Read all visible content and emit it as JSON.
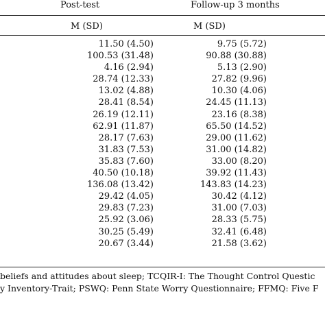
{
  "table": {
    "headers": [
      "Post-test",
      "Follow-up 3 months"
    ],
    "subheaders": [
      "M (SD)",
      "M (SD)"
    ],
    "rows": [
      [
        "11.50 (4.50)",
        "9.75 (5.72)"
      ],
      [
        "100.53 (31.48)",
        "90.88 (30.88)"
      ],
      [
        "4.16 (2.94)",
        "5.13 (2.90)"
      ],
      [
        "28.74 (12.33)",
        "27.82 (9.96)"
      ],
      [
        "13.02 (4.88)",
        "10.30 (4.06)"
      ],
      [
        "28.41 (8.54)",
        "24.45 (11.13)"
      ],
      [
        "26.19 (12.11)",
        "23.16 (8.38)"
      ],
      [
        "62.91 (11.87)",
        "65.50 (14.52)"
      ],
      [
        "28.17 (7.63)",
        "29.00 (11.62)"
      ],
      [
        "31.83 (7.53)",
        "31.00 (14.82)"
      ],
      [
        "35.83 (7.60)",
        "33.00 (8.20)"
      ],
      [
        "40.50 (10.18)",
        "39.92 (11.43)"
      ],
      [
        "136.08 (13.42)",
        "143.83 (14.23)"
      ],
      [
        "29.42 (4.05)",
        "30.42 (4.12)"
      ],
      [
        "29.83 (7.23)",
        "31.00 (7.03)"
      ],
      [
        "25.92 (3.06)",
        "28.33 (5.75)"
      ],
      [
        "30.25 (5.49)",
        "32.41 (6.48)"
      ],
      [
        "20.67 (3.44)",
        "21.58 (3.62)"
      ]
    ]
  },
  "footnote": {
    "line1": "beliefs and attitudes about sleep; TCQIR-I: The Thought Control Questic",
    "line2": "y Inventory-Trait; PSWQ: Penn State Worry Questionnaire; FFMQ: Five F"
  }
}
